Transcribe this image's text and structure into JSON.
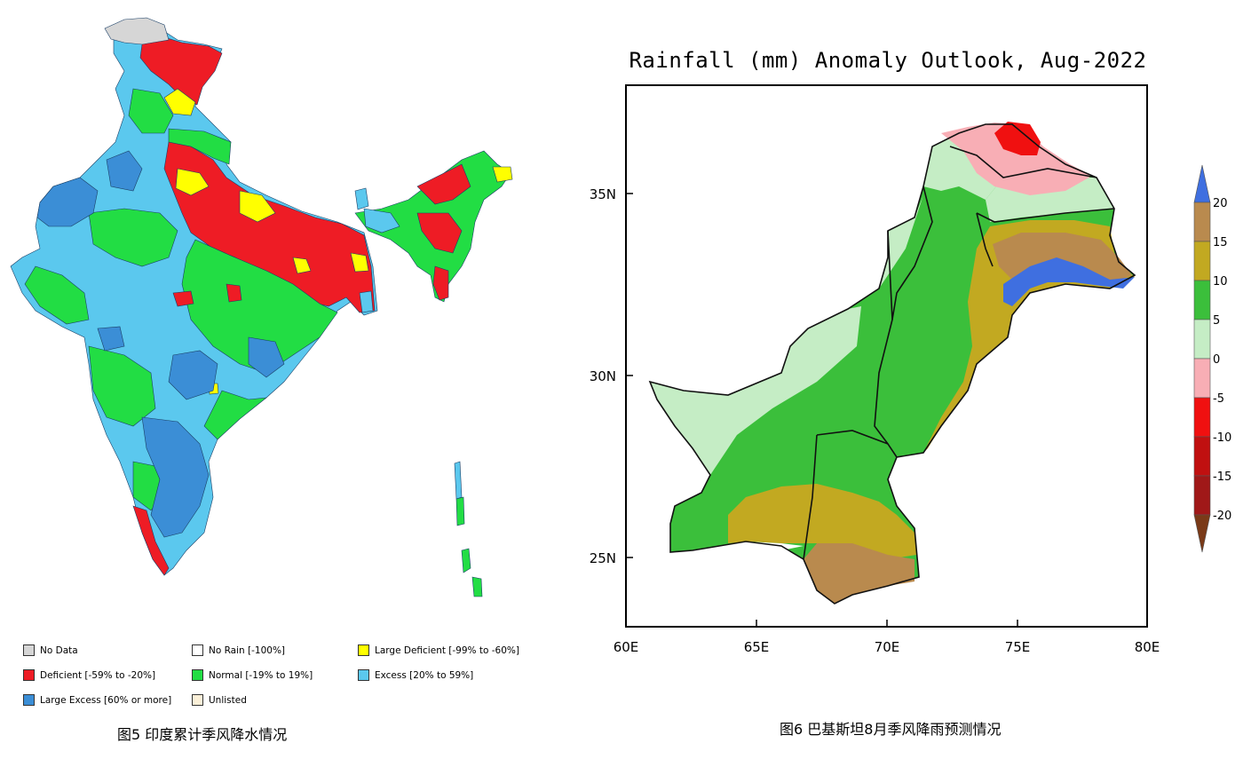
{
  "india_panel": {
    "caption": "图5 印度累计季风降水情况",
    "legend": [
      {
        "label": "No Data",
        "color": "#d6d6d6"
      },
      {
        "label": "No Rain [-100%]",
        "color": "#ffffff"
      },
      {
        "label": "Large Deficient [-99% to -60%]",
        "color": "#ffff00"
      },
      {
        "label": "Deficient [-59% to -20%]",
        "color": "#ee1c25"
      },
      {
        "label": "Normal [-19% to 19%]",
        "color": "#22dd44"
      },
      {
        "label": "Excess [20% to 59%]",
        "color": "#5bc8ee"
      },
      {
        "label": "Large Excess [60% or more]",
        "color": "#3b8ed6"
      },
      {
        "label": "Unlisted",
        "color": "#fbf0d8"
      }
    ]
  },
  "pakistan_panel": {
    "title": "Rainfall (mm) Anomaly Outlook, Aug-2022",
    "caption": "图6 巴基斯坦8月季风降雨预测情况",
    "x_ticks": [
      "60E",
      "65E",
      "70E",
      "75E",
      "80E"
    ],
    "y_ticks": [
      "35N",
      "30N",
      "25N"
    ],
    "colorbar_ticks": [
      "20",
      "15",
      "10",
      "5",
      "0",
      "-5",
      "-10",
      "-15",
      "-20"
    ],
    "colors": {
      "strong_positive": "#3f6fe0",
      "p15_20": "#b98a4e",
      "p10_15": "#c2a921",
      "p5_10": "#3bbf3b",
      "p0_5": "#c5edc5",
      "n0_5": "#f8aeb5",
      "n5_10": "#f01010",
      "n10_15": "#c01010",
      "n15_20": "#a01818",
      "strong_negative": "#7a3a18"
    }
  }
}
